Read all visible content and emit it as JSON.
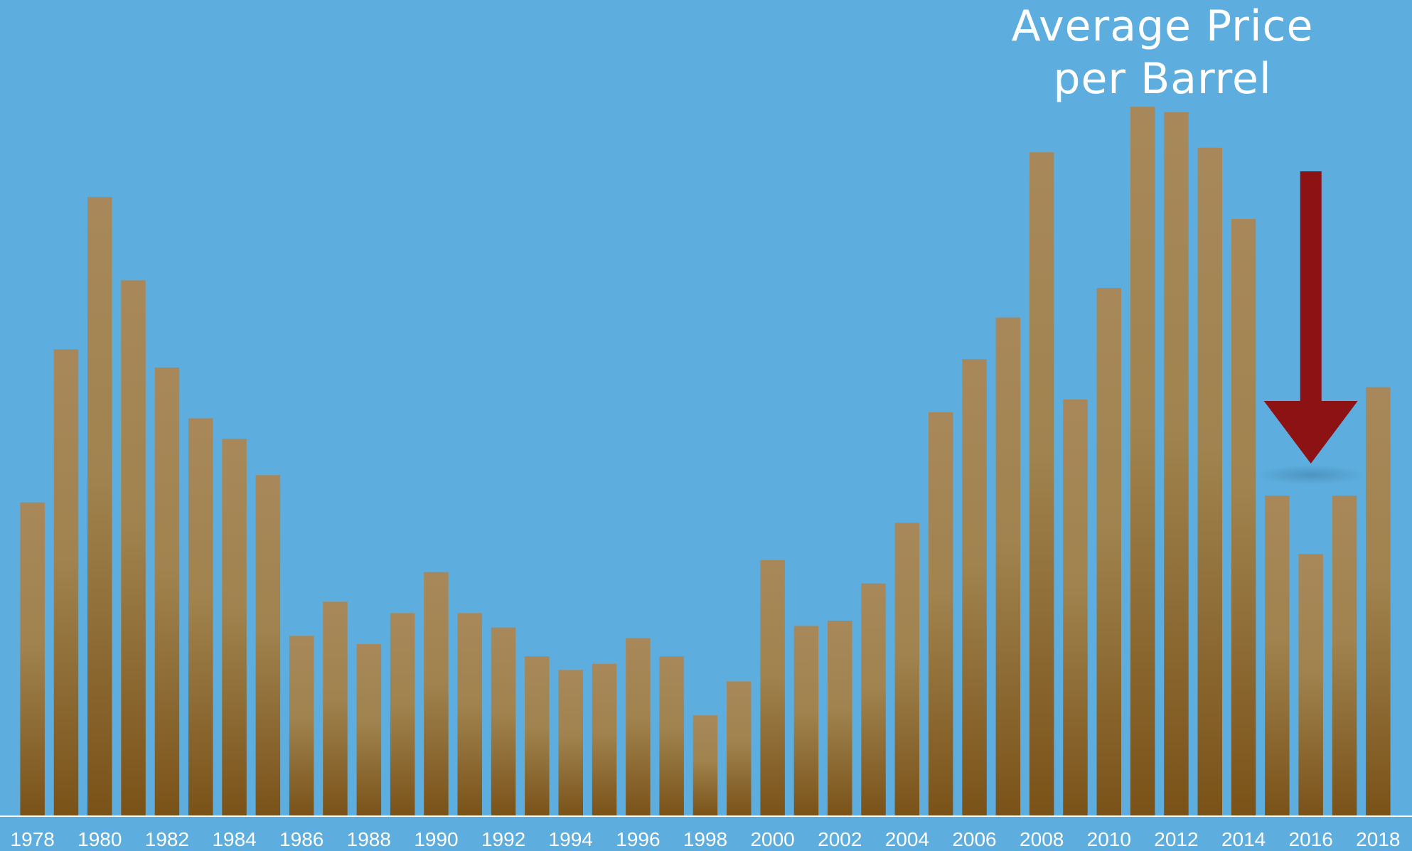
{
  "chart_data": {
    "type": "bar",
    "title_lines": [
      "Average Price",
      "per Barrel"
    ],
    "xlabel": "",
    "ylabel": "",
    "categories": [
      "1978",
      "1979",
      "1980",
      "1981",
      "1982",
      "1983",
      "1984",
      "1985",
      "1986",
      "1987",
      "1988",
      "1989",
      "1990",
      "1991",
      "1992",
      "1993",
      "1994",
      "1995",
      "1996",
      "1997",
      "1998",
      "1999",
      "2000",
      "2001",
      "2002",
      "2003",
      "2004",
      "2005",
      "2006",
      "2007",
      "2008",
      "2009",
      "2010",
      "2011",
      "2012",
      "2013",
      "2014",
      "2015",
      "2016",
      "2017",
      "2018"
    ],
    "tick_labels": [
      "1978",
      "1980",
      "1982",
      "1984",
      "1986",
      "1988",
      "1990",
      "1992",
      "1994",
      "1996",
      "1998",
      "2000",
      "2002",
      "2004",
      "2006",
      "2008",
      "2010",
      "2012",
      "2014",
      "2016",
      "2018"
    ],
    "values": [
      41.4,
      61.6,
      81.7,
      70.7,
      59.2,
      52.5,
      49.8,
      45.0,
      23.8,
      28.3,
      22.7,
      26.8,
      32.2,
      26.8,
      24.9,
      21.1,
      19.3,
      20.1,
      23.5,
      21.1,
      13.3,
      17.8,
      33.8,
      25.1,
      25.8,
      30.7,
      38.7,
      53.3,
      60.3,
      65.8,
      87.6,
      55.0,
      69.7,
      93.6,
      92.9,
      88.2,
      78.8,
      42.3,
      34.6,
      42.3,
      56.6
    ],
    "ylim": [
      0,
      100
    ],
    "grid": false,
    "legend": "none",
    "annotation": {
      "type": "arrow",
      "direction": "down",
      "near_category": "2016",
      "color": "#8d1214"
    },
    "colors": {
      "background": "#5daede",
      "bar_top": "#a8885a",
      "bar_mid": "#a0834f",
      "bar_bottom": "#7a5218",
      "axis": "#ffffff",
      "text": "#ffffff"
    }
  }
}
